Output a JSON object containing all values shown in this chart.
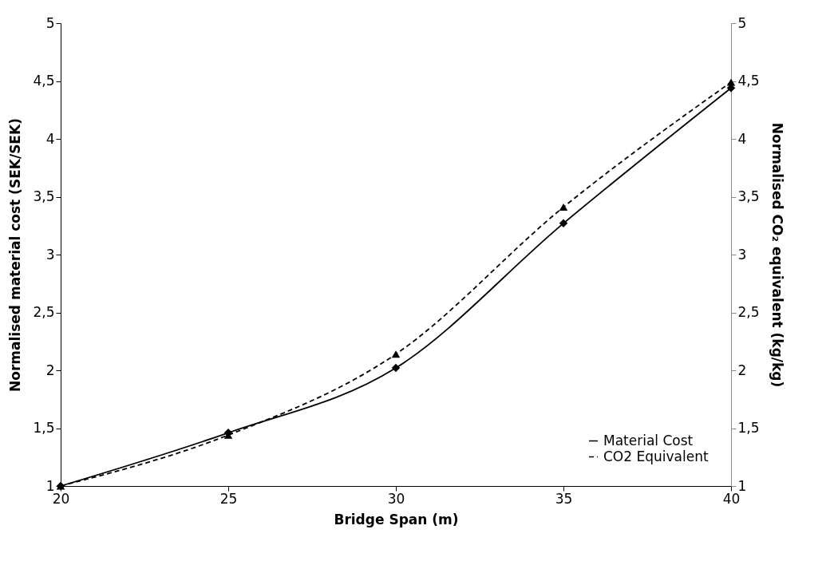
{
  "chart_data": {
    "type": "line",
    "xlabel": "Bridge Span (m)",
    "ylabel": "Normalised material cost (SEK/SEK)",
    "y2label": "Normalised  CO₂ equivalent (kg/kg)",
    "x": [
      20,
      25,
      30,
      35,
      40
    ],
    "series": [
      {
        "name": "Material Cost",
        "color": "#000000",
        "values": [
          1,
          1.46,
          2.02,
          3.27,
          4.44
        ],
        "marker": "diamond",
        "line_style": "solid"
      },
      {
        "name": "CO2 Equivalent",
        "color": "#000000",
        "values": [
          1,
          1.44,
          2.14,
          3.41,
          4.49
        ],
        "marker": "triangle",
        "line_style": "dashed",
        "axis": "y2"
      }
    ],
    "xlim": [
      20,
      40
    ],
    "xticks": [
      20,
      25,
      30,
      35,
      40
    ],
    "ylim": [
      1,
      5
    ],
    "yticks": [
      1,
      {
        "value": 1.5,
        "label": "1,5"
      },
      2,
      {
        "value": 2.5,
        "label": "2,5"
      },
      3,
      {
        "value": 3.5,
        "label": "3,5"
      },
      4,
      {
        "value": 4.5,
        "label": "4,5"
      },
      5
    ],
    "y2lim": [
      1,
      5
    ],
    "y2ticks": [
      1,
      {
        "value": 1.5,
        "label": "1,5"
      },
      2,
      {
        "value": 2.5,
        "label": "2,5"
      },
      3,
      {
        "value": 3.5,
        "label": "3,5"
      },
      4,
      {
        "value": 4.5,
        "label": "4,5"
      },
      5
    ],
    "grid": false,
    "legend": "bottom right"
  }
}
